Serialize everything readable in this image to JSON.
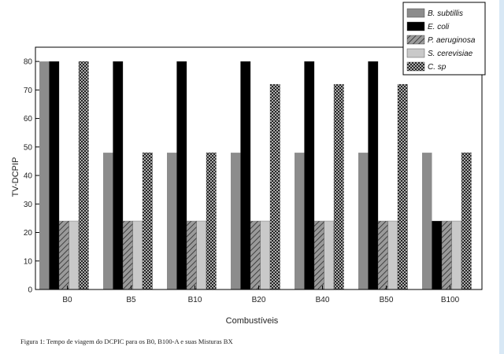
{
  "chart_data": {
    "type": "bar",
    "xlabel": "Combustíveis",
    "ylabel": "TV-DCPIP",
    "ylim": [
      0,
      85
    ],
    "yticks": [
      0,
      10,
      20,
      30,
      40,
      50,
      60,
      70,
      80
    ],
    "categories": [
      "B0",
      "B5",
      "B10",
      "B20",
      "B40",
      "B50",
      "B100"
    ],
    "series": [
      {
        "name": "B. subtillis",
        "pattern": "solid-gray",
        "color": "#808080",
        "values": [
          80,
          48,
          48,
          48,
          48,
          48,
          48
        ]
      },
      {
        "name": "E. coli",
        "pattern": "solid-black",
        "color": "#000000",
        "values": [
          80,
          80,
          80,
          80,
          80,
          80,
          24
        ]
      },
      {
        "name": "P. aeruginosa",
        "pattern": "diagonal-hatch",
        "color": "#707070",
        "values": [
          24,
          24,
          24,
          24,
          24,
          24,
          24
        ]
      },
      {
        "name": "S. cerevisiae",
        "pattern": "solid-light",
        "color": "#c8c8c8",
        "values": [
          24,
          24,
          24,
          24,
          24,
          24,
          24
        ]
      },
      {
        "name": "C. sp",
        "pattern": "crosshatch",
        "color": "#555555",
        "values": [
          80,
          48,
          48,
          72,
          72,
          72,
          48
        ]
      }
    ],
    "legend_position": "top-right",
    "grid": false
  },
  "caption": "Figura 1:  Tempo de viagem do DCPIC para os B0, B100-A e suas Misturas BX"
}
